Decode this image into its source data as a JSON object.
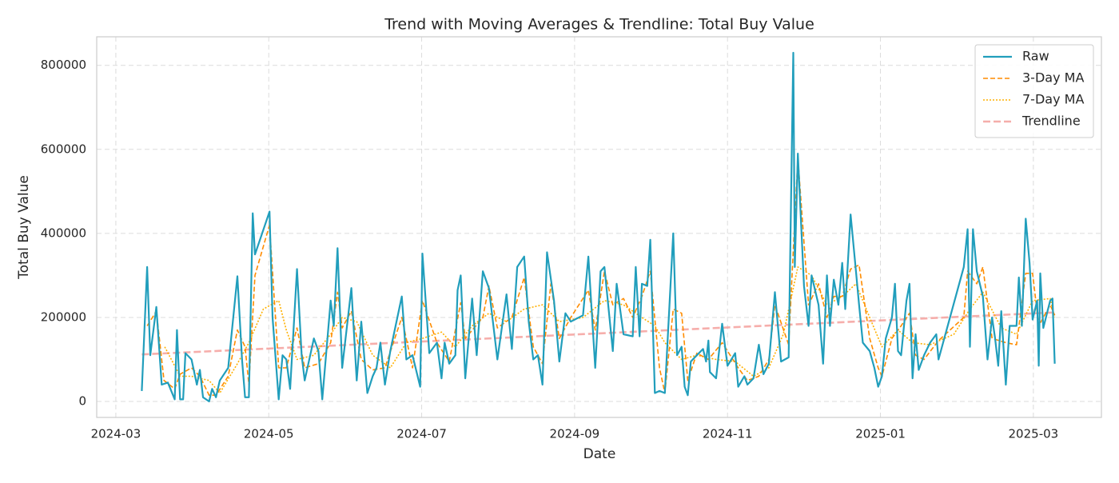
{
  "chart_data": {
    "type": "line",
    "title": "Trend with Moving Averages & Trendline: Total Buy Value",
    "x_label": "Date",
    "y_label": "Total Buy Value",
    "xlim": [
      2.75,
      15.89
    ],
    "xticks": [
      {
        "value": 3,
        "label": "2024-03"
      },
      {
        "value": 5,
        "label": "2024-05"
      },
      {
        "value": 7,
        "label": "2024-07"
      },
      {
        "value": 9,
        "label": "2024-09"
      },
      {
        "value": 11,
        "label": "2024-11"
      },
      {
        "value": 13,
        "label": "2025-01"
      },
      {
        "value": 15,
        "label": "2025-03"
      }
    ],
    "ylim": [
      -38000,
      868000
    ],
    "yticks": [
      0,
      200000,
      400000,
      600000,
      800000
    ],
    "grid": true,
    "legend": "upper right",
    "series": [
      {
        "name": "Raw",
        "color": "#219ebc",
        "style": "solid",
        "x": [
          3.34,
          3.41,
          3.45,
          3.53,
          3.6,
          3.68,
          3.77,
          3.8,
          3.84,
          3.88,
          3.91,
          3.99,
          4.06,
          4.1,
          4.14,
          4.22,
          4.26,
          4.31,
          4.36,
          4.47,
          4.59,
          4.65,
          4.69,
          4.74,
          4.79,
          4.82,
          5.01,
          5.05,
          5.13,
          5.18,
          5.23,
          5.28,
          5.37,
          5.43,
          5.47,
          5.59,
          5.65,
          5.7,
          5.81,
          5.85,
          5.9,
          5.96,
          6.08,
          6.15,
          6.21,
          6.29,
          6.36,
          6.41,
          6.46,
          6.52,
          6.59,
          6.74,
          6.8,
          6.88,
          6.98,
          7.01,
          7.1,
          7.2,
          7.26,
          7.3,
          7.36,
          7.44,
          7.47,
          7.51,
          7.57,
          7.66,
          7.72,
          7.8,
          7.88,
          7.99,
          8.11,
          8.18,
          8.25,
          8.34,
          8.4,
          8.46,
          8.52,
          8.58,
          8.64,
          8.73,
          8.8,
          8.88,
          8.95,
          9.11,
          9.18,
          9.27,
          9.34,
          9.39,
          9.5,
          9.55,
          9.64,
          9.76,
          9.8,
          9.85,
          9.88,
          9.95,
          9.99,
          10.05,
          10.11,
          10.18,
          10.29,
          10.34,
          10.4,
          10.44,
          10.48,
          10.52,
          10.6,
          10.68,
          10.72,
          10.75,
          10.77,
          10.85,
          10.93,
          11.0,
          11.1,
          11.14,
          11.22,
          11.26,
          11.34,
          11.41,
          11.47,
          11.54,
          11.62,
          11.7,
          11.8,
          11.86,
          11.88,
          11.92,
          12.0,
          12.06,
          12.1,
          12.19,
          12.25,
          12.3,
          12.34,
          12.39,
          12.45,
          12.5,
          12.54,
          12.61,
          12.68,
          12.72,
          12.77,
          12.86,
          12.92,
          12.97,
          13.02,
          13.07,
          13.15,
          13.19,
          13.23,
          13.27,
          13.34,
          13.38,
          13.42,
          13.46,
          13.5,
          13.57,
          13.65,
          13.73,
          13.76,
          14.09,
          14.14,
          14.17,
          14.21,
          14.26,
          14.34,
          14.4,
          14.46,
          14.5,
          14.54,
          14.58,
          14.64,
          14.69,
          14.78,
          14.81,
          14.85,
          14.9,
          14.95,
          14.99,
          15.05,
          15.07,
          15.09,
          15.13,
          15.22,
          15.25,
          15.28
        ],
        "values": [
          25000,
          320000,
          110000,
          225000,
          40000,
          45000,
          5000,
          170000,
          5000,
          5000,
          115000,
          100000,
          40000,
          75000,
          10000,
          0,
          30000,
          10000,
          50000,
          80000,
          298000,
          100000,
          10000,
          10000,
          448000,
          350000,
          452000,
          200000,
          5000,
          110000,
          100000,
          30000,
          315000,
          110000,
          50000,
          150000,
          120000,
          5000,
          240000,
          180000,
          365000,
          80000,
          270000,
          50000,
          190000,
          20000,
          60000,
          80000,
          140000,
          40000,
          120000,
          250000,
          100000,
          110000,
          35000,
          352000,
          115000,
          140000,
          55000,
          140000,
          90000,
          110000,
          265000,
          300000,
          55000,
          245000,
          110000,
          310000,
          270000,
          100000,
          255000,
          125000,
          320000,
          345000,
          190000,
          100000,
          110000,
          40000,
          355000,
          240000,
          95000,
          210000,
          190000,
          205000,
          345000,
          80000,
          310000,
          320000,
          120000,
          280000,
          160000,
          155000,
          320000,
          155000,
          280000,
          275000,
          385000,
          20000,
          25000,
          20000,
          400000,
          110000,
          130000,
          35000,
          15000,
          95000,
          110000,
          125000,
          95000,
          145000,
          70000,
          55000,
          185000,
          85000,
          115000,
          35000,
          60000,
          40000,
          55000,
          135000,
          65000,
          90000,
          260000,
          95000,
          105000,
          830000,
          320000,
          590000,
          275000,
          180000,
          300000,
          230000,
          90000,
          300000,
          180000,
          290000,
          230000,
          330000,
          220000,
          445000,
          310000,
          230000,
          140000,
          120000,
          80000,
          35000,
          60000,
          150000,
          200000,
          280000,
          120000,
          110000,
          240000,
          280000,
          55000,
          160000,
          75000,
          110000,
          140000,
          160000,
          100000,
          320000,
          410000,
          130000,
          410000,
          310000,
          250000,
          100000,
          200000,
          150000,
          85000,
          215000,
          40000,
          180000,
          180000,
          295000,
          180000,
          435000,
          330000,
          195000,
          240000,
          85000,
          305000,
          175000,
          240000,
          245000,
          90000
        ]
      },
      {
        "name": "3-Day MA",
        "color": "#ff8c00",
        "style": "dashed",
        "x": [
          3.41,
          3.53,
          3.63,
          3.77,
          3.84,
          3.99,
          4.1,
          4.22,
          4.31,
          4.47,
          4.59,
          4.69,
          4.74,
          4.82,
          5.01,
          5.13,
          5.23,
          5.37,
          5.47,
          5.65,
          5.81,
          5.9,
          5.96,
          6.08,
          6.21,
          6.36,
          6.52,
          6.74,
          6.88,
          7.01,
          7.2,
          7.36,
          7.51,
          7.57,
          7.8,
          7.88,
          7.99,
          8.18,
          8.34,
          8.46,
          8.58,
          8.69,
          8.8,
          8.95,
          9.18,
          9.27,
          9.39,
          9.5,
          9.64,
          9.76,
          9.88,
          9.99,
          10.11,
          10.18,
          10.29,
          10.4,
          10.48,
          10.6,
          10.75,
          10.93,
          11.14,
          11.26,
          11.41,
          11.54,
          11.62,
          11.8,
          11.92,
          12.06,
          12.19,
          12.3,
          12.39,
          12.5,
          12.61,
          12.72,
          12.86,
          12.97,
          13.02,
          13.15,
          13.27,
          13.38,
          13.46,
          13.57,
          13.76,
          14.09,
          14.14,
          14.26,
          14.34,
          14.46,
          14.64,
          14.78,
          14.9,
          14.99,
          15.07,
          15.22,
          15.28
        ],
        "values": [
          180000,
          215000,
          50000,
          30000,
          65000,
          80000,
          60000,
          15000,
          15000,
          60000,
          170000,
          130000,
          40000,
          300000,
          420000,
          80000,
          80000,
          175000,
          80000,
          90000,
          140000,
          260000,
          175000,
          215000,
          100000,
          75000,
          80000,
          200000,
          80000,
          240000,
          140000,
          95000,
          235000,
          150000,
          200000,
          275000,
          175000,
          200000,
          295000,
          130000,
          90000,
          280000,
          150000,
          200000,
          265000,
          170000,
          310000,
          230000,
          245000,
          200000,
          250000,
          310000,
          80000,
          20000,
          220000,
          210000,
          50000,
          115000,
          100000,
          140000,
          80000,
          50000,
          60000,
          100000,
          230000,
          135000,
          580000,
          230000,
          280000,
          200000,
          250000,
          250000,
          315000,
          325000,
          150000,
          80000,
          60000,
          150000,
          180000,
          210000,
          110000,
          100000,
          145000,
          200000,
          310000,
          280000,
          320000,
          150000,
          140000,
          135000,
          305000,
          305000,
          180000,
          230000,
          205000
        ]
      },
      {
        "name": "7-Day MA",
        "color": "#ffb000",
        "style": "dotted",
        "x": [
          3.64,
          3.84,
          3.99,
          4.22,
          4.36,
          4.59,
          4.74,
          4.93,
          5.13,
          5.23,
          5.37,
          5.59,
          5.81,
          5.96,
          6.15,
          6.36,
          6.59,
          6.8,
          7.01,
          7.26,
          7.44,
          7.66,
          7.88,
          8.11,
          8.34,
          8.58,
          8.8,
          9.11,
          9.39,
          9.64,
          9.88,
          10.05,
          10.18,
          10.4,
          10.6,
          10.85,
          11.1,
          11.34,
          11.54,
          11.73,
          11.92,
          12.1,
          12.3,
          12.5,
          12.68,
          12.86,
          13.02,
          13.23,
          13.42,
          13.65,
          13.96,
          14.17,
          14.34,
          14.58,
          14.78,
          14.99,
          15.22,
          15.28
        ],
        "values": [
          130000,
          60000,
          60000,
          50000,
          20000,
          90000,
          140000,
          220000,
          240000,
          170000,
          100000,
          110000,
          160000,
          200000,
          190000,
          110000,
          80000,
          140000,
          150000,
          165000,
          130000,
          180000,
          210000,
          190000,
          220000,
          230000,
          190000,
          200000,
          240000,
          230000,
          200000,
          180000,
          140000,
          100000,
          110000,
          100000,
          95000,
          60000,
          80000,
          160000,
          320000,
          300000,
          230000,
          250000,
          280000,
          200000,
          130000,
          170000,
          140000,
          135000,
          160000,
          220000,
          260000,
          175000,
          160000,
          240000,
          245000,
          200000
        ]
      },
      {
        "name": "Trendline",
        "color": "#f4a09c",
        "style": "trend",
        "x": [
          3.34,
          15.28
        ],
        "values": [
          112000,
          212000
        ]
      }
    ]
  }
}
